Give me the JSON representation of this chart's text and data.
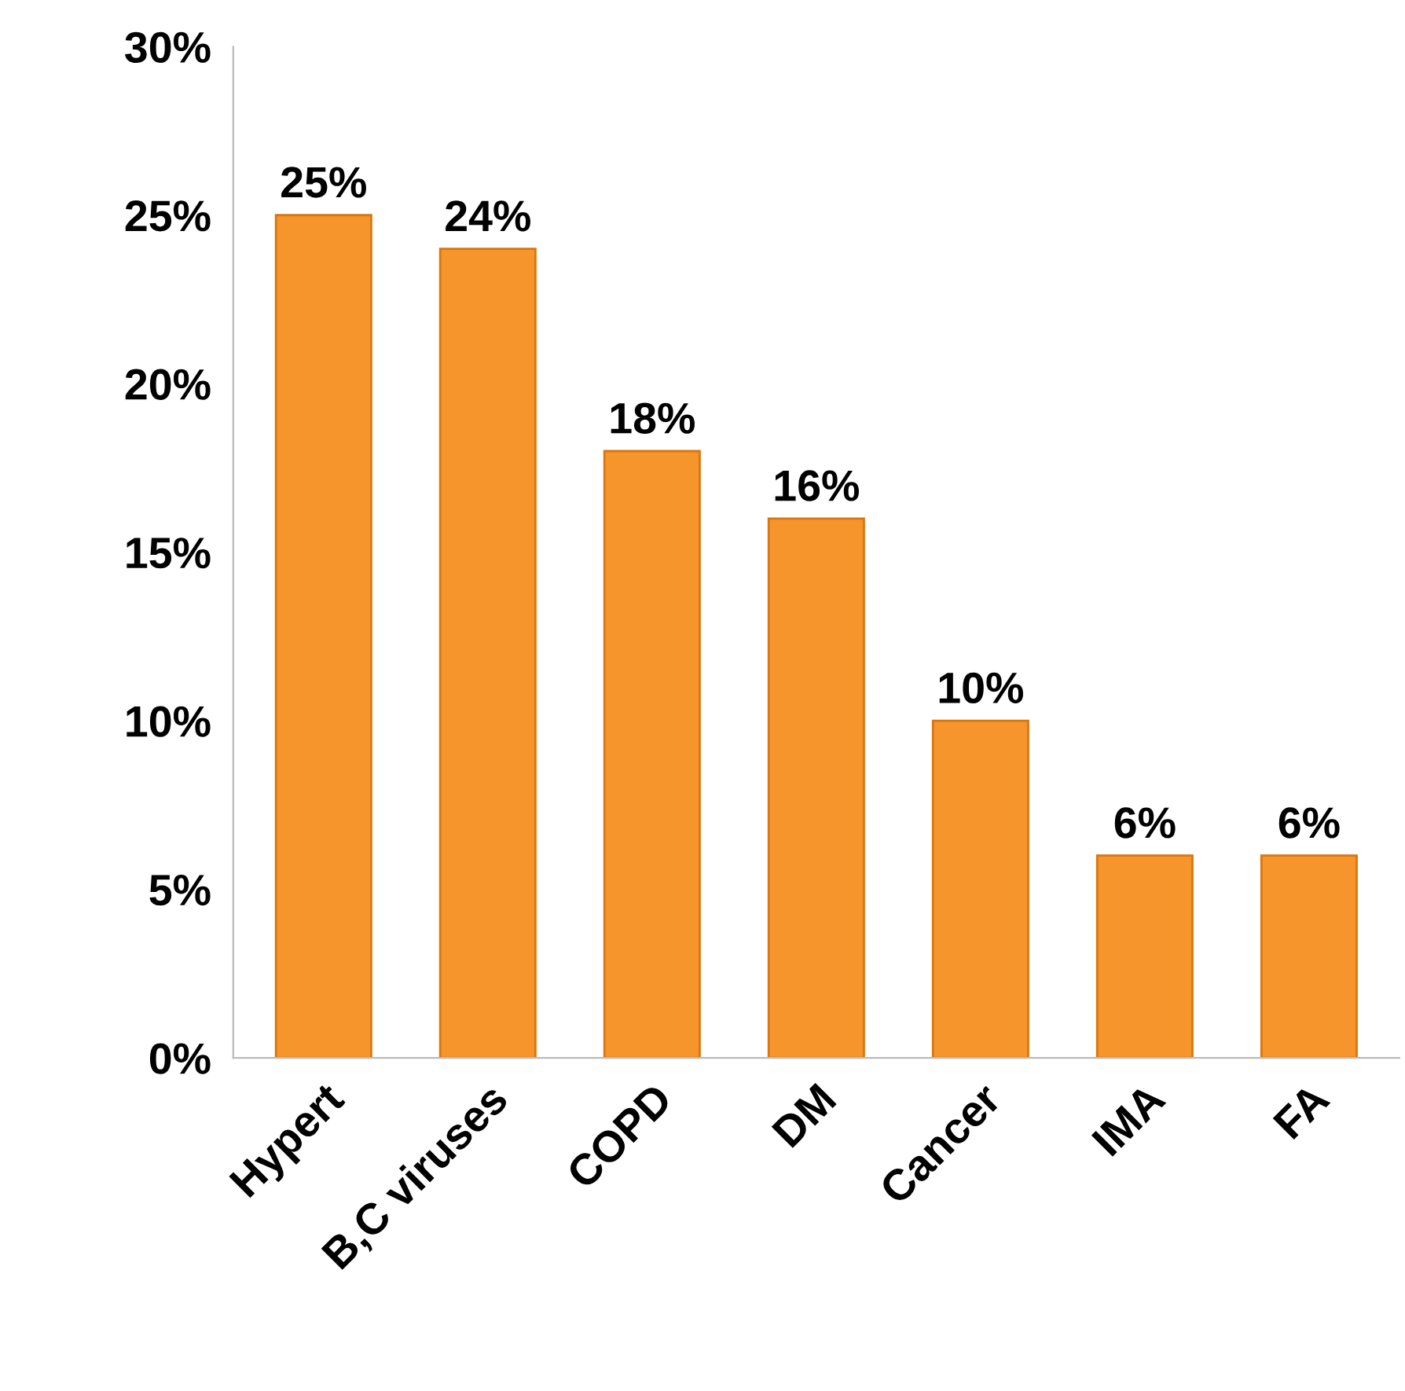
{
  "chart_data": {
    "type": "bar",
    "categories": [
      "Hypert",
      "B,C viruses",
      "COPD",
      "DM",
      "Cancer",
      "IMA",
      "FA"
    ],
    "values": [
      25,
      24,
      18,
      16,
      10,
      6,
      6
    ],
    "value_labels": [
      "25%",
      "24%",
      "18%",
      "16%",
      "10%",
      "6%",
      "6%"
    ],
    "color": "#f5952c",
    "ylim": [
      0,
      30
    ],
    "yticks": [
      {
        "value": 0,
        "label": "0%"
      },
      {
        "value": 5,
        "label": "5%"
      },
      {
        "value": 10,
        "label": "10%"
      },
      {
        "value": 15,
        "label": "15%"
      },
      {
        "value": 20,
        "label": "20%"
      },
      {
        "value": 25,
        "label": "25%"
      },
      {
        "value": 30,
        "label": "30%"
      }
    ],
    "grid": false,
    "legend": false
  }
}
